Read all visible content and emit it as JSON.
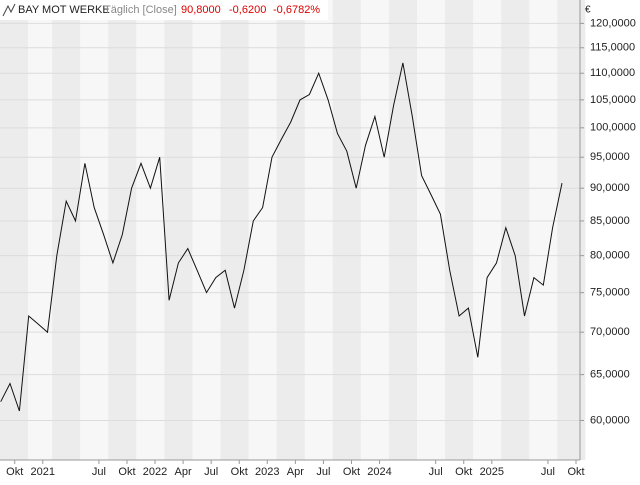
{
  "chart_data": {
    "type": "line",
    "title": "BAY MOT WERKE",
    "subtitle": "Täglich [Close]",
    "last_value": "90,8000",
    "change": "-0,6200",
    "change_pct": "-0,6782%",
    "unit": "€",
    "color": "#111111",
    "log_scale": true,
    "grid": true,
    "x": [
      "2020-08",
      "2020-09",
      "2020-10",
      "2020-11",
      "2020-12",
      "2021-01",
      "2021-02",
      "2021-03",
      "2021-04",
      "2021-05",
      "2021-06",
      "2021-07",
      "2021-08",
      "2021-09",
      "2021-10",
      "2021-11",
      "2021-12",
      "2022-01",
      "2022-02",
      "2022-03",
      "2022-04",
      "2022-05",
      "2022-06",
      "2022-07",
      "2022-08",
      "2022-09",
      "2022-10",
      "2022-11",
      "2022-12",
      "2023-01",
      "2023-02",
      "2023-03",
      "2023-04",
      "2023-05",
      "2023-06",
      "2023-07",
      "2023-08",
      "2023-09",
      "2023-10",
      "2023-11",
      "2023-12",
      "2024-01",
      "2024-02",
      "2024-03",
      "2024-04",
      "2024-05",
      "2024-06",
      "2024-07",
      "2024-08",
      "2024-09",
      "2024-10",
      "2024-11",
      "2024-12",
      "2025-01",
      "2025-02",
      "2025-03",
      "2025-04",
      "2025-05",
      "2025-06",
      "2025-07",
      "2025-08"
    ],
    "values": [
      62,
      64,
      61,
      72,
      71,
      70,
      80,
      88,
      85,
      94,
      87,
      83,
      79,
      83,
      90,
      94,
      90,
      95,
      74,
      79,
      81,
      78,
      75,
      77,
      78,
      73,
      78,
      85,
      87,
      95,
      98,
      101,
      105,
      106,
      110,
      105,
      99,
      96,
      90,
      97,
      102,
      95,
      104,
      112,
      102,
      92,
      89,
      86,
      78,
      72,
      73,
      67,
      77,
      79,
      84,
      80,
      72,
      77,
      76,
      84,
      90.8
    ],
    "xlim": [
      "2020-08",
      "2025-10"
    ],
    "xticks": [
      {
        "value": "2020-10",
        "label": "Okt"
      },
      {
        "value": "2021-01",
        "label": "2021"
      },
      {
        "value": "2021-07",
        "label": "Jul"
      },
      {
        "value": "2021-10",
        "label": "Okt"
      },
      {
        "value": "2022-01",
        "label": "2022"
      },
      {
        "value": "2022-04",
        "label": "Apr"
      },
      {
        "value": "2022-07",
        "label": "Jul"
      },
      {
        "value": "2022-10",
        "label": "Okt"
      },
      {
        "value": "2023-01",
        "label": "2023"
      },
      {
        "value": "2023-04",
        "label": "Apr"
      },
      {
        "value": "2023-07",
        "label": "Jul"
      },
      {
        "value": "2023-10",
        "label": "Okt"
      },
      {
        "value": "2024-01",
        "label": "2024"
      },
      {
        "value": "2024-07",
        "label": "Jul"
      },
      {
        "value": "2024-10",
        "label": "Okt"
      },
      {
        "value": "2025-01",
        "label": "2025"
      },
      {
        "value": "2025-07",
        "label": "Jul"
      },
      {
        "value": "2025-10",
        "label": "Okt"
      }
    ],
    "ylim": [
      56,
      125
    ],
    "yticks": [
      {
        "value": 60,
        "label": "60,0000"
      },
      {
        "value": 65,
        "label": "65,0000"
      },
      {
        "value": 70,
        "label": "70,0000"
      },
      {
        "value": 75,
        "label": "75,0000"
      },
      {
        "value": 80,
        "label": "80,0000"
      },
      {
        "value": 85,
        "label": "85,0000"
      },
      {
        "value": 90,
        "label": "90,0000"
      },
      {
        "value": 95,
        "label": "95,0000"
      },
      {
        "value": 100,
        "label": "100,0000"
      },
      {
        "value": 105,
        "label": "105,0000"
      },
      {
        "value": 110,
        "label": "110,0000"
      },
      {
        "value": 115,
        "label": "115,0000"
      },
      {
        "value": 120,
        "label": "120,0000"
      }
    ]
  }
}
